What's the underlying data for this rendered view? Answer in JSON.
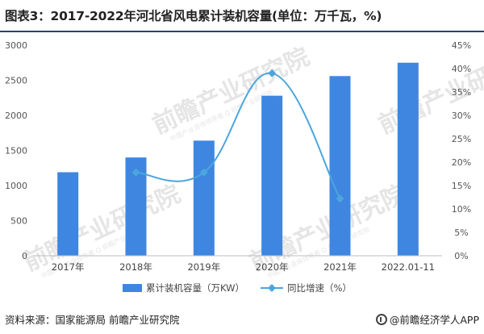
{
  "title": "图表3：2017-2022年河北省风电累计装机容量(单位：万千瓦，%)",
  "watermark": "前瞻产业研究院",
  "watermark_sub": "中国产业咨询领导者 Q 前瞻产业研究院",
  "footer": {
    "source": "资料来源：国家能源局 前瞻产业研究院",
    "brand": "@前瞻经济学人APP"
  },
  "chart_data": {
    "type": "bar",
    "categories": [
      "2017年",
      "2018年",
      "2019年",
      "2020年",
      "2021年",
      "2022.01-11"
    ],
    "series": [
      {
        "name": "累计装机容量（万KW）",
        "type": "bar",
        "axis": "left",
        "values": [
          1190,
          1400,
          1640,
          2280,
          2560,
          2750
        ],
        "color": "#3f86e0"
      },
      {
        "name": "同比增速（%）",
        "type": "line",
        "axis": "right",
        "values": [
          null,
          17.8,
          17.8,
          39.0,
          12.2,
          null
        ],
        "color": "#4aa6dd"
      }
    ],
    "y_left": {
      "min": 0,
      "max": 3000,
      "ticks": [
        "0",
        "500",
        "1000",
        "1500",
        "2000",
        "2500",
        "3000"
      ]
    },
    "y_right": {
      "min": 0,
      "max": 45,
      "ticks": [
        "0%",
        "5%",
        "10%",
        "15%",
        "20%",
        "25%",
        "30%",
        "35%",
        "40%",
        "45%"
      ]
    },
    "grid": false,
    "legend_position": "bottom"
  }
}
